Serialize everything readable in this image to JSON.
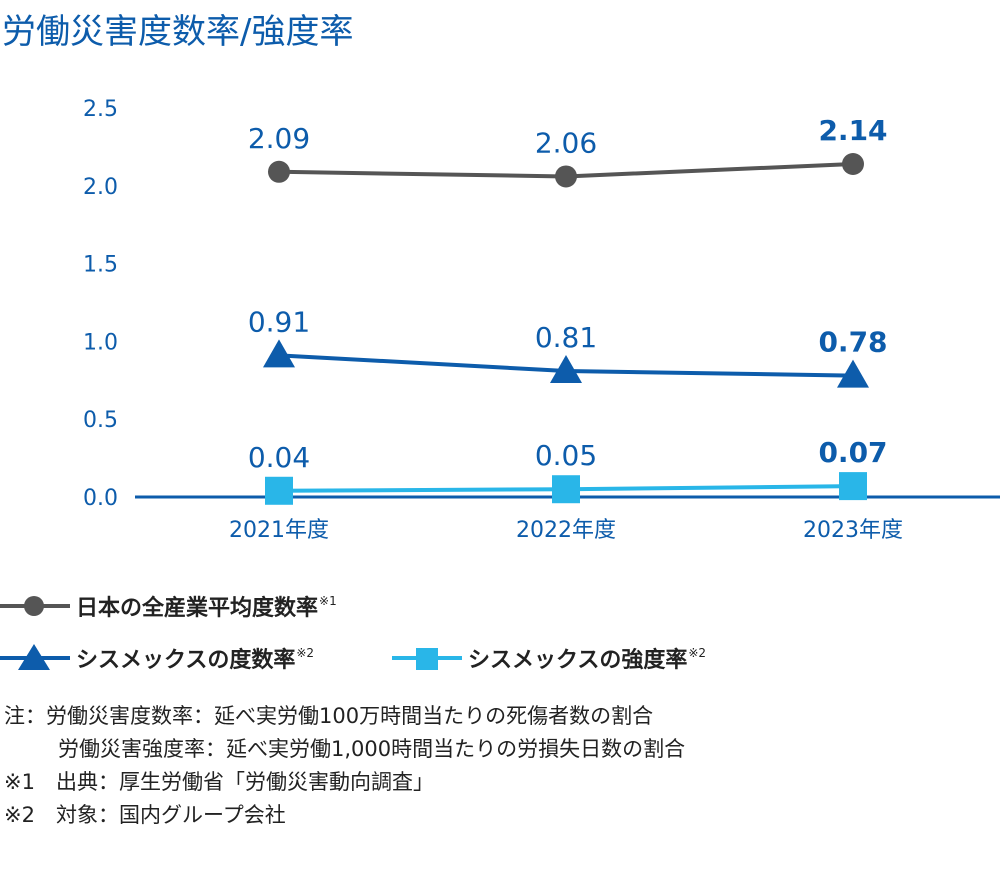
{
  "title": "労働災害度数率/強度率",
  "chart_data": {
    "type": "line",
    "categories": [
      "2021年度",
      "2022年度",
      "2023年度"
    ],
    "ylim": [
      0,
      2.5
    ],
    "yticks": [
      "0.0",
      "0.5",
      "1.0",
      "1.5",
      "2.0",
      "2.5"
    ],
    "grid": false,
    "legend_position": "bottom",
    "series": [
      {
        "name": "日本の全産業平均度数率",
        "note_mark": "※1",
        "values": [
          2.09,
          2.06,
          2.14
        ],
        "labels": [
          "2.09",
          "2.06",
          "2.14"
        ],
        "marker": "circle",
        "color": "#555555"
      },
      {
        "name": "シスメックスの度数率",
        "note_mark": "※2",
        "values": [
          0.91,
          0.81,
          0.78
        ],
        "labels": [
          "0.91",
          "0.81",
          "0.78"
        ],
        "marker": "triangle",
        "color": "#0d5cab"
      },
      {
        "name": "シスメックスの強度率",
        "note_mark": "※2",
        "values": [
          0.04,
          0.05,
          0.07
        ],
        "labels": [
          "0.04",
          "0.05",
          "0.07"
        ],
        "marker": "square",
        "color": "#29b6e8"
      }
    ]
  },
  "colors": {
    "title": "#0d5cab",
    "axis": "#0d5cab",
    "label": "#0d5cab"
  },
  "notes": [
    "注：労働災害度数率：延べ実労働100万時間当たりの死傷者数の割合",
    "労働災害強度率：延べ実労働1,000時間当たりの労損失日数の割合",
    "※1　出典：厚生労働省「労働災害動向調査」",
    "※2　対象：国内グループ会社"
  ]
}
